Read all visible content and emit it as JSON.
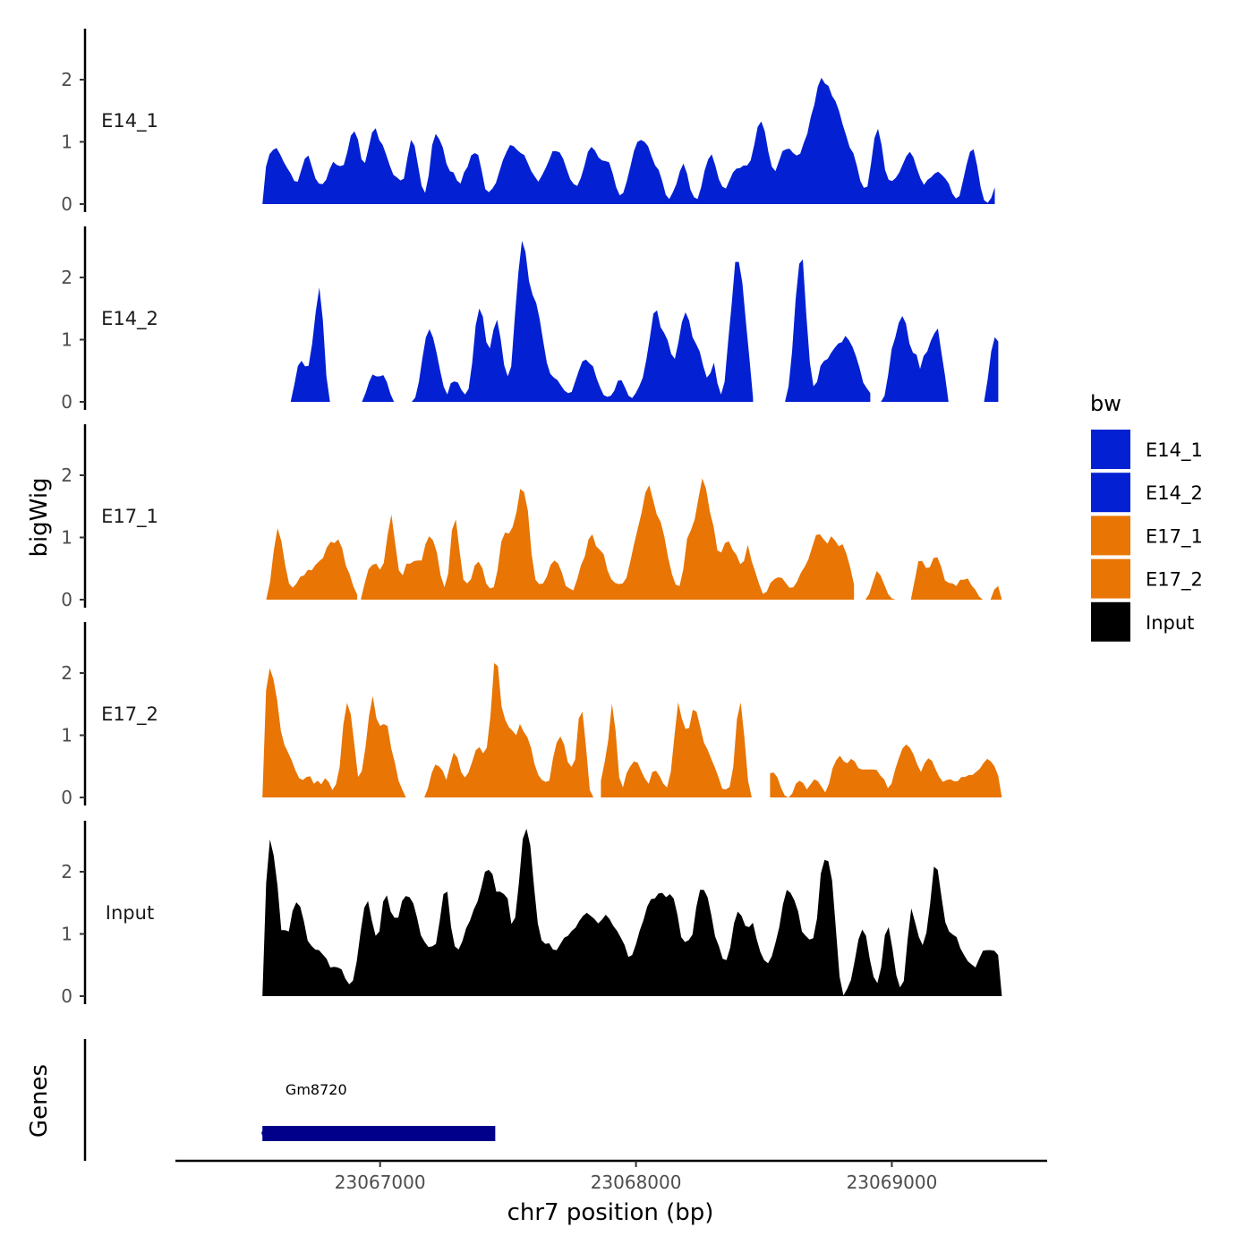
{
  "chart_data": {
    "type": "area",
    "y_axis_title": "bigWig",
    "x_axis_title": "chr7 position (bp)",
    "genes_axis_title": "Genes",
    "x_ticks": [
      23067000,
      23068000,
      23069000
    ],
    "x_tick_labels": [
      "23067000",
      "23068000",
      "23069000"
    ],
    "x_range": [
      23066200,
      23069600
    ],
    "ylim": [
      0,
      2.8
    ],
    "y_ticks": [
      0,
      1,
      2
    ],
    "y_tick_labels": [
      "0",
      "1",
      "2"
    ],
    "legend": {
      "title": "bw",
      "entries": [
        {
          "label": "E14_1",
          "color": "#0321D3"
        },
        {
          "label": "E14_2",
          "color": "#0321D3"
        },
        {
          "label": "E17_1",
          "color": "#E87504"
        },
        {
          "label": "E17_2",
          "color": "#E87504"
        },
        {
          "label": "Input",
          "color": "#000000"
        }
      ]
    },
    "tracks": [
      {
        "name": "E14_1",
        "color": "#0321D3",
        "x_start": 23066540,
        "x_end": 23069430,
        "values": [
          0.0,
          0.6,
          0.8,
          0.87,
          0.9,
          0.8,
          0.68,
          0.58,
          0.49,
          0.37,
          0.36,
          0.55,
          0.73,
          0.78,
          0.6,
          0.41,
          0.33,
          0.32,
          0.39,
          0.56,
          0.68,
          0.63,
          0.61,
          0.63,
          0.84,
          1.1,
          1.17,
          1.04,
          0.72,
          0.66,
          0.9,
          1.15,
          1.22,
          1.03,
          0.95,
          0.79,
          0.62,
          0.47,
          0.43,
          0.38,
          0.41,
          0.75,
          1.03,
          0.94,
          0.62,
          0.29,
          0.18,
          0.46,
          0.95,
          1.13,
          1.04,
          0.91,
          0.65,
          0.53,
          0.51,
          0.38,
          0.33,
          0.51,
          0.6,
          0.78,
          0.82,
          0.79,
          0.53,
          0.24,
          0.19,
          0.25,
          0.34,
          0.53,
          0.71,
          0.84,
          0.95,
          0.93,
          0.87,
          0.82,
          0.79,
          0.66,
          0.53,
          0.44,
          0.36,
          0.46,
          0.57,
          0.7,
          0.85,
          0.85,
          0.83,
          0.73,
          0.56,
          0.4,
          0.32,
          0.29,
          0.42,
          0.61,
          0.84,
          0.92,
          0.86,
          0.75,
          0.7,
          0.69,
          0.67,
          0.49,
          0.27,
          0.14,
          0.18,
          0.37,
          0.6,
          0.85,
          1.0,
          1.03,
          1.0,
          0.93,
          0.77,
          0.62,
          0.55,
          0.37,
          0.15,
          0.08,
          0.19,
          0.32,
          0.53,
          0.65,
          0.49,
          0.23,
          0.11,
          0.08,
          0.27,
          0.54,
          0.72,
          0.8,
          0.62,
          0.4,
          0.28,
          0.25,
          0.38,
          0.51,
          0.57,
          0.58,
          0.62,
          0.62,
          0.7,
          0.95,
          1.24,
          1.33,
          1.17,
          0.84,
          0.6,
          0.53,
          0.69,
          0.85,
          0.88,
          0.89,
          0.82,
          0.78,
          0.81,
          0.98,
          1.13,
          1.4,
          1.6,
          1.89,
          2.03,
          1.94,
          1.9,
          1.74,
          1.65,
          1.49,
          1.28,
          1.1,
          0.91,
          0.82,
          0.62,
          0.37,
          0.26,
          0.28,
          0.64,
          1.06,
          1.21,
          0.95,
          0.55,
          0.39,
          0.37,
          0.42,
          0.51,
          0.64,
          0.77,
          0.84,
          0.75,
          0.57,
          0.41,
          0.31,
          0.39,
          0.43,
          0.49,
          0.52,
          0.47,
          0.41,
          0.33,
          0.17,
          0.09,
          0.13,
          0.37,
          0.63,
          0.84,
          0.88,
          0.62,
          0.27,
          0.06,
          0.02,
          0.1,
          0.27,
          0.15,
          0.0
        ],
        "segments": [
          [
            0,
            207
          ]
        ]
      },
      {
        "name": "E14_2",
        "color": "#0321D3",
        "x_start": 23066540,
        "x_end": 23069430,
        "values": [
          0.0,
          0.0,
          0.0,
          0.0,
          0.0,
          0.0,
          0.0,
          0.0,
          0.02,
          0.28,
          0.58,
          0.66,
          0.57,
          0.58,
          0.94,
          1.45,
          1.84,
          1.32,
          0.41,
          0.0,
          0.0,
          0.0,
          0.0,
          0.0,
          0.0,
          0.0,
          0.0,
          0.0,
          0.0,
          0.14,
          0.32,
          0.44,
          0.41,
          0.41,
          0.43,
          0.32,
          0.13,
          0.0,
          0.0,
          0.0,
          0.0,
          0.0,
          0.0,
          0.07,
          0.32,
          0.7,
          1.04,
          1.17,
          1.03,
          0.79,
          0.5,
          0.24,
          0.12,
          0.3,
          0.33,
          0.31,
          0.19,
          0.12,
          0.21,
          0.63,
          1.23,
          1.5,
          1.37,
          0.96,
          0.86,
          1.16,
          1.32,
          1.02,
          0.59,
          0.41,
          0.57,
          1.36,
          2.08,
          2.59,
          2.41,
          1.94,
          1.72,
          1.59,
          1.33,
          0.97,
          0.63,
          0.45,
          0.39,
          0.35,
          0.26,
          0.18,
          0.14,
          0.16,
          0.33,
          0.5,
          0.65,
          0.68,
          0.62,
          0.57,
          0.38,
          0.23,
          0.11,
          0.08,
          0.1,
          0.18,
          0.34,
          0.35,
          0.23,
          0.1,
          0.06,
          0.14,
          0.25,
          0.39,
          0.68,
          1.04,
          1.42,
          1.47,
          1.2,
          1.11,
          0.99,
          0.77,
          0.69,
          0.95,
          1.28,
          1.44,
          1.31,
          1.04,
          0.93,
          0.81,
          0.58,
          0.39,
          0.46,
          0.63,
          0.3,
          0.12,
          0.32,
          0.96,
          1.57,
          2.25,
          2.25,
          1.92,
          1.29,
          0.69,
          0.06,
          0.0,
          0.0,
          0.0,
          0.0,
          0.0,
          0.0,
          0.0,
          0.0,
          0.0,
          0.25,
          0.81,
          1.65,
          2.22,
          2.29,
          1.4,
          0.63,
          0.25,
          0.32,
          0.58,
          0.66,
          0.69,
          0.79,
          0.87,
          0.94,
          0.96,
          1.06,
          0.99,
          0.88,
          0.73,
          0.54,
          0.31,
          0.22,
          0.14,
          0.0,
          0.0,
          0.0,
          0.1,
          0.43,
          0.85,
          1.03,
          1.27,
          1.38,
          1.26,
          0.94,
          0.79,
          0.76,
          0.53,
          0.74,
          0.81,
          0.98,
          1.1,
          1.18,
          0.79,
          0.43,
          0.0,
          0.0,
          0.0,
          0.0,
          0.0,
          0.0,
          0.0,
          0.0,
          0.0,
          0.0,
          0.0,
          0.36,
          0.81,
          1.04,
          0.97,
          0.0
        ],
        "segments": [
          [
            8,
            19
          ],
          [
            28,
            37
          ],
          [
            42,
            138
          ],
          [
            145,
            171
          ],
          [
            174,
            198
          ],
          [
            201,
            207
          ]
        ]
      },
      {
        "name": "E17_1",
        "color": "#E87504",
        "x_start": 23066540,
        "x_end": 23069430,
        "values": [
          0.0,
          0.0,
          0.28,
          0.79,
          1.15,
          0.94,
          0.56,
          0.26,
          0.19,
          0.26,
          0.37,
          0.39,
          0.48,
          0.47,
          0.56,
          0.62,
          0.67,
          0.84,
          0.93,
          0.91,
          0.97,
          0.83,
          0.55,
          0.41,
          0.21,
          0.08,
          0.02,
          0.27,
          0.49,
          0.56,
          0.58,
          0.48,
          0.59,
          1.03,
          1.37,
          0.91,
          0.47,
          0.39,
          0.58,
          0.58,
          0.62,
          0.63,
          0.63,
          0.89,
          1.02,
          0.95,
          0.76,
          0.39,
          0.2,
          0.42,
          1.12,
          1.29,
          0.78,
          0.32,
          0.26,
          0.33,
          0.55,
          0.61,
          0.51,
          0.26,
          0.18,
          0.2,
          0.47,
          0.93,
          1.08,
          1.06,
          1.17,
          1.41,
          1.78,
          1.73,
          1.43,
          0.73,
          0.32,
          0.25,
          0.26,
          0.37,
          0.56,
          0.63,
          0.58,
          0.43,
          0.22,
          0.18,
          0.15,
          0.33,
          0.55,
          0.69,
          0.97,
          1.05,
          0.86,
          0.8,
          0.73,
          0.47,
          0.33,
          0.27,
          0.25,
          0.26,
          0.35,
          0.61,
          0.89,
          1.15,
          1.4,
          1.72,
          1.84,
          1.61,
          1.37,
          1.25,
          1.01,
          0.67,
          0.41,
          0.24,
          0.22,
          0.49,
          0.98,
          1.12,
          1.29,
          1.63,
          1.95,
          1.78,
          1.41,
          1.17,
          0.79,
          0.76,
          0.91,
          0.94,
          0.8,
          0.72,
          0.57,
          0.62,
          0.88,
          0.62,
          0.44,
          0.25,
          0.09,
          0.13,
          0.27,
          0.33,
          0.36,
          0.35,
          0.27,
          0.19,
          0.2,
          0.29,
          0.43,
          0.53,
          0.65,
          0.85,
          1.04,
          1.05,
          0.97,
          0.9,
          1.02,
          0.95,
          0.86,
          0.89,
          0.74,
          0.52,
          0.24,
          0.08,
          0.0,
          0.0,
          0.09,
          0.28,
          0.46,
          0.39,
          0.24,
          0.09,
          0.02,
          0.0,
          0.0,
          0.0,
          0.0,
          0.0,
          0.31,
          0.62,
          0.62,
          0.51,
          0.52,
          0.67,
          0.68,
          0.53,
          0.31,
          0.27,
          0.26,
          0.22,
          0.32,
          0.32,
          0.34,
          0.23,
          0.16,
          0.05,
          0.0,
          0.0,
          0.0,
          0.16,
          0.22,
          0.0
        ],
        "segments": [
          [
            0,
            25
          ],
          [
            26,
            156
          ],
          [
            159,
            167
          ],
          [
            169,
            207
          ]
        ]
      },
      {
        "name": "E17_2",
        "color": "#E87504",
        "x_start": 23066540,
        "x_end": 23069430,
        "values": [
          0.0,
          1.72,
          2.08,
          1.9,
          1.57,
          1.07,
          0.84,
          0.72,
          0.59,
          0.43,
          0.31,
          0.28,
          0.33,
          0.34,
          0.22,
          0.27,
          0.21,
          0.31,
          0.25,
          0.12,
          0.21,
          0.49,
          1.17,
          1.52,
          1.34,
          0.84,
          0.33,
          0.42,
          0.8,
          1.32,
          1.63,
          1.27,
          1.15,
          1.18,
          1.15,
          0.79,
          0.56,
          0.27,
          0.13,
          0.0,
          0.0,
          0.0,
          0.0,
          0.0,
          0.0,
          0.15,
          0.39,
          0.53,
          0.5,
          0.43,
          0.28,
          0.51,
          0.72,
          0.64,
          0.41,
          0.32,
          0.4,
          0.57,
          0.76,
          0.81,
          0.71,
          0.8,
          1.31,
          2.16,
          2.11,
          1.46,
          1.25,
          1.13,
          1.07,
          1.0,
          1.18,
          1.06,
          0.97,
          0.8,
          0.53,
          0.36,
          0.28,
          0.25,
          0.27,
          0.63,
          0.88,
          0.98,
          0.85,
          0.57,
          0.49,
          0.61,
          1.27,
          1.38,
          0.79,
          0.12,
          0.0,
          0.0,
          0.27,
          0.56,
          0.92,
          1.51,
          1.07,
          0.32,
          0.16,
          0.39,
          0.5,
          0.58,
          0.56,
          0.42,
          0.3,
          0.22,
          0.41,
          0.43,
          0.34,
          0.22,
          0.16,
          0.41,
          0.99,
          1.53,
          1.27,
          1.1,
          1.12,
          1.41,
          1.38,
          1.14,
          0.88,
          0.77,
          0.62,
          0.48,
          0.32,
          0.14,
          0.13,
          0.17,
          0.49,
          1.26,
          1.53,
          0.97,
          0.27,
          0.0,
          0.0,
          0.0,
          0.11,
          0.29,
          0.39,
          0.4,
          0.32,
          0.15,
          0.03,
          0.0,
          0.06,
          0.22,
          0.27,
          0.23,
          0.13,
          0.21,
          0.29,
          0.26,
          0.17,
          0.08,
          0.22,
          0.47,
          0.6,
          0.67,
          0.58,
          0.55,
          0.62,
          0.58,
          0.47,
          0.45,
          0.45,
          0.45,
          0.45,
          0.44,
          0.35,
          0.29,
          0.15,
          0.22,
          0.45,
          0.63,
          0.79,
          0.85,
          0.8,
          0.69,
          0.53,
          0.41,
          0.55,
          0.63,
          0.59,
          0.45,
          0.33,
          0.25,
          0.28,
          0.29,
          0.26,
          0.26,
          0.33,
          0.33,
          0.36,
          0.36,
          0.41,
          0.46,
          0.55,
          0.62,
          0.58,
          0.5,
          0.35,
          0.0
        ],
        "segments": [
          [
            0,
            39
          ],
          [
            44,
            90
          ],
          [
            92,
            135
          ],
          [
            138,
            207
          ]
        ]
      },
      {
        "name": "Input",
        "color": "#000000",
        "x_start": 23066540,
        "x_end": 23069430,
        "values": [
          0.0,
          1.82,
          2.52,
          2.26,
          1.77,
          1.06,
          1.06,
          1.04,
          1.37,
          1.51,
          1.44,
          1.2,
          0.89,
          0.81,
          0.75,
          0.74,
          0.67,
          0.6,
          0.46,
          0.47,
          0.46,
          0.43,
          0.28,
          0.19,
          0.25,
          0.56,
          1.02,
          1.42,
          1.53,
          1.22,
          0.97,
          1.04,
          1.52,
          1.62,
          1.36,
          1.26,
          1.26,
          1.53,
          1.61,
          1.59,
          1.49,
          1.26,
          0.98,
          0.87,
          0.79,
          0.8,
          0.84,
          1.21,
          1.64,
          1.68,
          1.11,
          0.8,
          0.75,
          0.88,
          1.09,
          1.21,
          1.39,
          1.52,
          1.74,
          2.0,
          2.03,
          1.96,
          1.68,
          1.68,
          1.64,
          1.57,
          1.16,
          1.26,
          1.82,
          2.53,
          2.69,
          2.42,
          1.76,
          1.17,
          0.9,
          0.84,
          0.85,
          0.75,
          0.74,
          0.84,
          0.94,
          0.97,
          1.05,
          1.1,
          1.21,
          1.29,
          1.34,
          1.29,
          1.24,
          1.17,
          1.23,
          1.31,
          1.24,
          1.13,
          1.05,
          0.94,
          0.82,
          0.63,
          0.66,
          0.83,
          1.05,
          1.22,
          1.44,
          1.56,
          1.57,
          1.65,
          1.66,
          1.59,
          1.64,
          1.57,
          1.31,
          0.95,
          0.87,
          0.9,
          0.99,
          1.43,
          1.71,
          1.71,
          1.59,
          1.3,
          0.96,
          0.8,
          0.6,
          0.58,
          0.78,
          1.17,
          1.36,
          1.29,
          1.13,
          1.11,
          1.18,
          0.92,
          0.71,
          0.58,
          0.53,
          0.64,
          0.86,
          1.11,
          1.48,
          1.71,
          1.66,
          1.54,
          1.36,
          1.04,
          0.97,
          0.91,
          0.93,
          1.25,
          1.97,
          2.19,
          2.17,
          1.86,
          1.09,
          0.31,
          0.01,
          0.12,
          0.26,
          0.57,
          0.91,
          1.07,
          0.97,
          0.59,
          0.31,
          0.21,
          0.46,
          0.98,
          1.11,
          0.76,
          0.34,
          0.14,
          0.24,
          0.9,
          1.41,
          1.19,
          0.95,
          0.82,
          1.02,
          1.49,
          2.08,
          2.03,
          1.59,
          1.19,
          1.04,
          0.99,
          0.95,
          0.77,
          0.66,
          0.56,
          0.51,
          0.46,
          0.6,
          0.73,
          0.74,
          0.74,
          0.73,
          0.66,
          0.0
        ],
        "segments": [
          [
            0,
            207
          ]
        ]
      }
    ],
    "genes": [
      {
        "name": "Gm8720",
        "start": 23066540,
        "end": 23067450,
        "color": "#00008B"
      }
    ]
  }
}
